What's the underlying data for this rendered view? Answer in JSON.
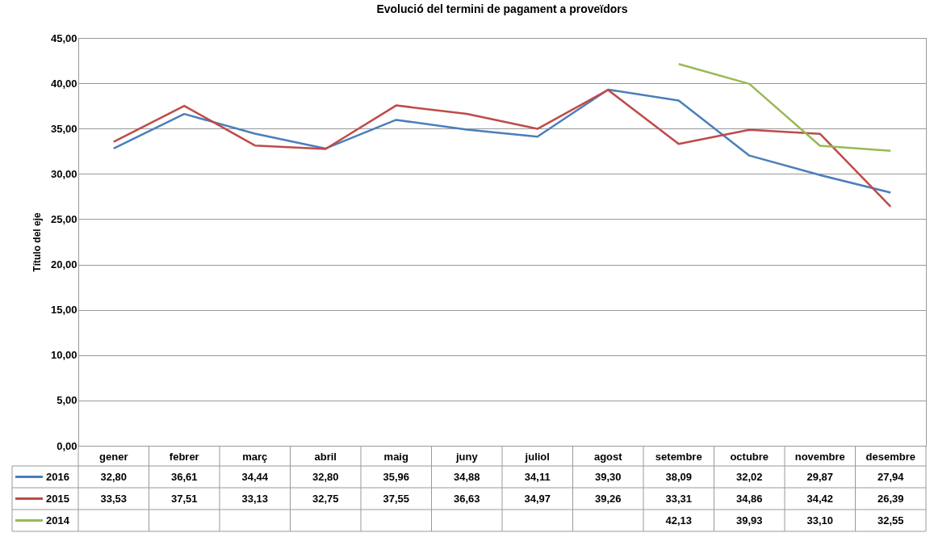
{
  "chart_data": {
    "type": "line",
    "title": "Evolució del termini de pagament a proveïdors",
    "ylabel": "Título del eje",
    "categories": [
      "gener",
      "febrer",
      "març",
      "abril",
      "maig",
      "juny",
      "juliol",
      "agost",
      "setembre",
      "octubre",
      "novembre",
      "desembre"
    ],
    "series": [
      {
        "name": "2016",
        "color": "#4a7ebb",
        "values": [
          32.8,
          36.61,
          34.44,
          32.8,
          35.96,
          34.88,
          34.11,
          39.3,
          38.09,
          32.02,
          29.87,
          27.94
        ],
        "value_labels": [
          "32,80",
          "36,61",
          "34,44",
          "32,80",
          "35,96",
          "34,88",
          "34,11",
          "39,30",
          "38,09",
          "32,02",
          "29,87",
          "27,94"
        ]
      },
      {
        "name": "2015",
        "color": "#be4b48",
        "values": [
          33.53,
          37.51,
          33.13,
          32.75,
          37.55,
          36.63,
          34.97,
          39.26,
          33.31,
          34.86,
          34.42,
          26.39
        ],
        "value_labels": [
          "33,53",
          "37,51",
          "33,13",
          "32,75",
          "37,55",
          "36,63",
          "34,97",
          "39,26",
          "33,31",
          "34,86",
          "34,42",
          "26,39"
        ]
      },
      {
        "name": "2014",
        "color": "#98b954",
        "values": [
          null,
          null,
          null,
          null,
          null,
          null,
          null,
          null,
          42.13,
          39.93,
          33.1,
          32.55
        ],
        "value_labels": [
          null,
          null,
          null,
          null,
          null,
          null,
          null,
          null,
          "42,13",
          "39,93",
          "33,10",
          "32,55"
        ]
      }
    ],
    "ylim": [
      0,
      45
    ],
    "yticks": [
      {
        "value": 0,
        "label": "0,00"
      },
      {
        "value": 5,
        "label": "5,00"
      },
      {
        "value": 10,
        "label": "10,00"
      },
      {
        "value": 15,
        "label": "15,00"
      },
      {
        "value": 20,
        "label": "20,00"
      },
      {
        "value": 25,
        "label": "25,00"
      },
      {
        "value": 30,
        "label": "30,00"
      },
      {
        "value": 35,
        "label": "35,00"
      },
      {
        "value": 40,
        "label": "40,00"
      },
      {
        "value": 45,
        "label": "45,00"
      }
    ],
    "grid": "y",
    "legend": "bottom"
  }
}
